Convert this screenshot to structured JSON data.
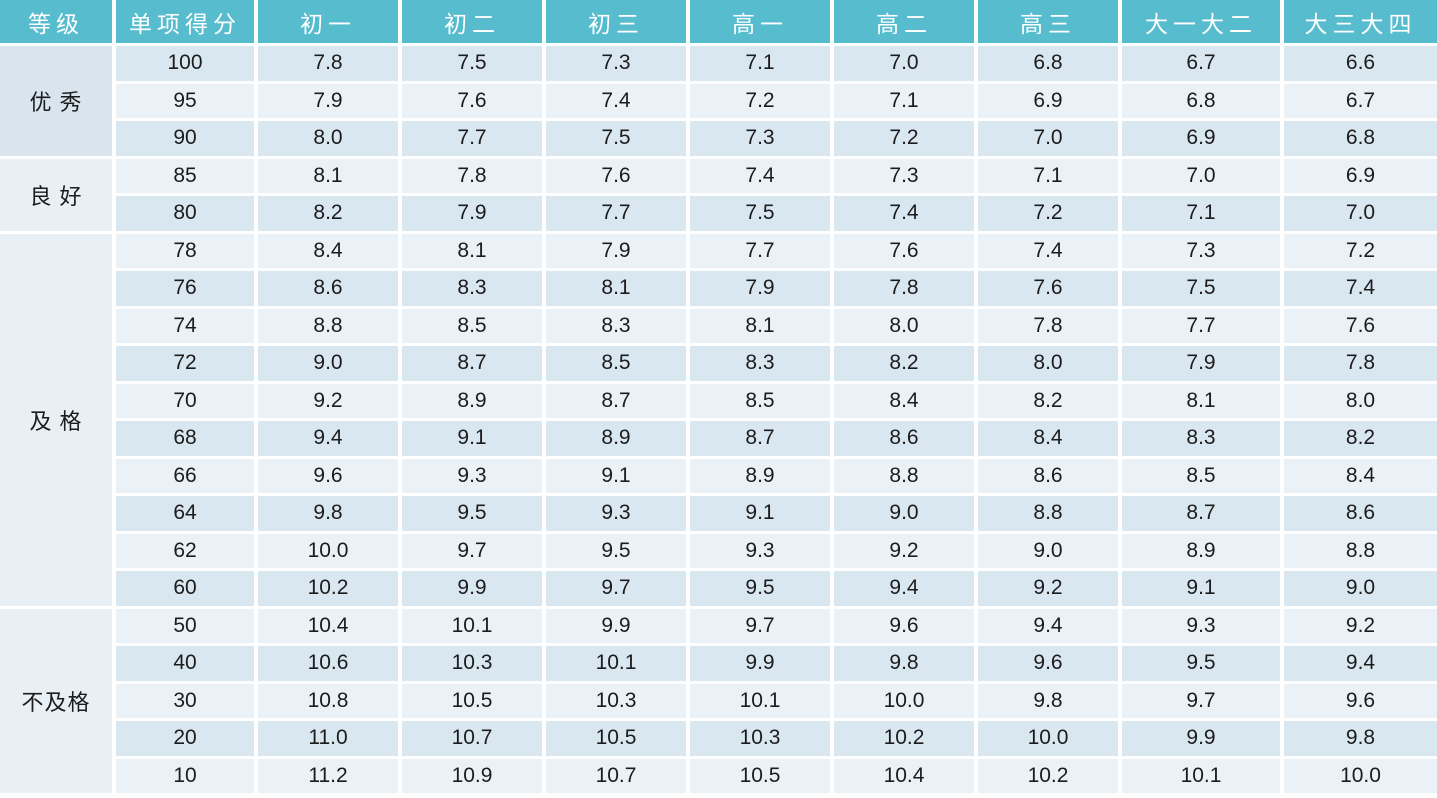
{
  "colors": {
    "header_background": "#57bcce",
    "header_text": "#ffffff",
    "row_shade_dark": "#d9e7f1",
    "row_shade_light": "#eaf2f8",
    "group_cell_dark": "#d8e5ef",
    "group_cell_light": "#e8f0f6",
    "body_text": "#1c1c1c",
    "page_background": "#ffffff"
  },
  "chart_data": {
    "type": "table",
    "columns": [
      "等级",
      "单项得分",
      "初一",
      "初二",
      "初三",
      "高一",
      "高二",
      "高三",
      "大一大二",
      "大三大四"
    ],
    "row_groups": [
      {
        "label": "优 秀",
        "rows": [
          [
            "100",
            "7.8",
            "7.5",
            "7.3",
            "7.1",
            "7.0",
            "6.8",
            "6.7",
            "6.6"
          ],
          [
            "95",
            "7.9",
            "7.6",
            "7.4",
            "7.2",
            "7.1",
            "6.9",
            "6.8",
            "6.7"
          ],
          [
            "90",
            "8.0",
            "7.7",
            "7.5",
            "7.3",
            "7.2",
            "7.0",
            "6.9",
            "6.8"
          ]
        ]
      },
      {
        "label": "良 好",
        "rows": [
          [
            "85",
            "8.1",
            "7.8",
            "7.6",
            "7.4",
            "7.3",
            "7.1",
            "7.0",
            "6.9"
          ],
          [
            "80",
            "8.2",
            "7.9",
            "7.7",
            "7.5",
            "7.4",
            "7.2",
            "7.1",
            "7.0"
          ]
        ]
      },
      {
        "label": "及 格",
        "rows": [
          [
            "78",
            "8.4",
            "8.1",
            "7.9",
            "7.7",
            "7.6",
            "7.4",
            "7.3",
            "7.2"
          ],
          [
            "76",
            "8.6",
            "8.3",
            "8.1",
            "7.9",
            "7.8",
            "7.6",
            "7.5",
            "7.4"
          ],
          [
            "74",
            "8.8",
            "8.5",
            "8.3",
            "8.1",
            "8.0",
            "7.8",
            "7.7",
            "7.6"
          ],
          [
            "72",
            "9.0",
            "8.7",
            "8.5",
            "8.3",
            "8.2",
            "8.0",
            "7.9",
            "7.8"
          ],
          [
            "70",
            "9.2",
            "8.9",
            "8.7",
            "8.5",
            "8.4",
            "8.2",
            "8.1",
            "8.0"
          ],
          [
            "68",
            "9.4",
            "9.1",
            "8.9",
            "8.7",
            "8.6",
            "8.4",
            "8.3",
            "8.2"
          ],
          [
            "66",
            "9.6",
            "9.3",
            "9.1",
            "8.9",
            "8.8",
            "8.6",
            "8.5",
            "8.4"
          ],
          [
            "64",
            "9.8",
            "9.5",
            "9.3",
            "9.1",
            "9.0",
            "8.8",
            "8.7",
            "8.6"
          ],
          [
            "62",
            "10.0",
            "9.7",
            "9.5",
            "9.3",
            "9.2",
            "9.0",
            "8.9",
            "8.8"
          ],
          [
            "60",
            "10.2",
            "9.9",
            "9.7",
            "9.5",
            "9.4",
            "9.2",
            "9.1",
            "9.0"
          ]
        ]
      },
      {
        "label": "不及格",
        "rows": [
          [
            "50",
            "10.4",
            "10.1",
            "9.9",
            "9.7",
            "9.6",
            "9.4",
            "9.3",
            "9.2"
          ],
          [
            "40",
            "10.6",
            "10.3",
            "10.1",
            "9.9",
            "9.8",
            "9.6",
            "9.5",
            "9.4"
          ],
          [
            "30",
            "10.8",
            "10.5",
            "10.3",
            "10.1",
            "10.0",
            "9.8",
            "9.7",
            "9.6"
          ],
          [
            "20",
            "11.0",
            "10.7",
            "10.5",
            "10.3",
            "10.2",
            "10.0",
            "9.9",
            "9.8"
          ],
          [
            "10",
            "11.2",
            "10.9",
            "10.7",
            "10.5",
            "10.4",
            "10.2",
            "10.1",
            "10.0"
          ]
        ]
      }
    ]
  }
}
